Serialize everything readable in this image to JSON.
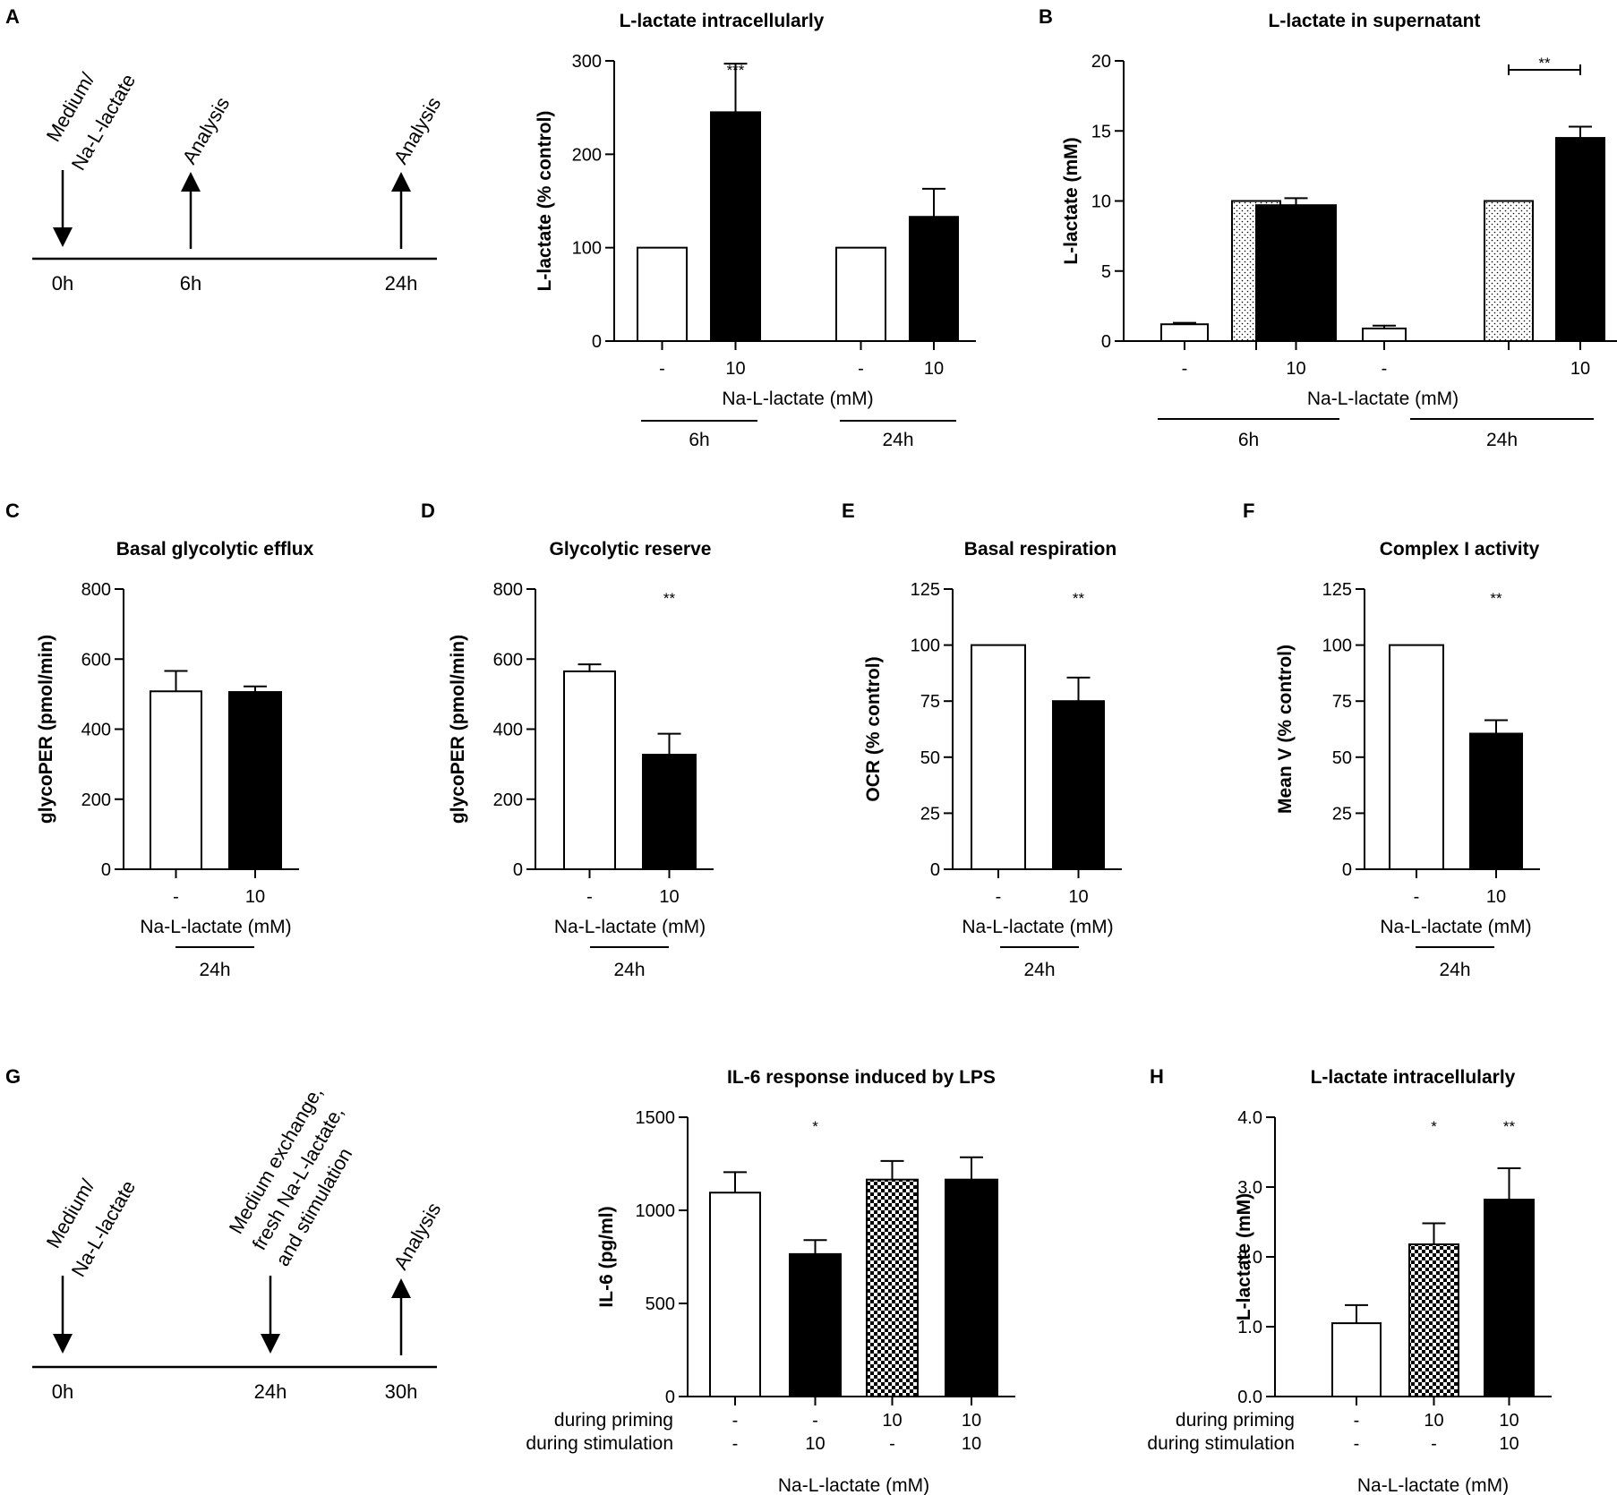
{
  "panels": {
    "A": {
      "label": "A"
    },
    "B": {
      "label": "B"
    },
    "C": {
      "label": "C"
    },
    "D": {
      "label": "D"
    },
    "E": {
      "label": "E"
    },
    "F": {
      "label": "F"
    },
    "G": {
      "label": "G"
    },
    "H": {
      "label": "H"
    }
  },
  "timeline_a": {
    "start_label_1": "Medium/",
    "start_label_2": "Na-L-lactate",
    "analysis_1": "Analysis",
    "analysis_2": "Analysis",
    "times": [
      "0h",
      "6h",
      "24h"
    ]
  },
  "timeline_g": {
    "start_label_1": "Medium/",
    "start_label_2": "Na-L-lactate",
    "mid_label_1": "Medium exchange,",
    "mid_label_2": "fresh Na-L-lactate,",
    "mid_label_3": "and stimulation",
    "analysis": "Analysis",
    "times": [
      "0h",
      "24h",
      "30h"
    ]
  },
  "chart_data": [
    {
      "panel": "A",
      "type": "bar",
      "title": "L-lactate intracellularly",
      "ylabel": "L-lactate (% control)",
      "xlabel": "Na-L-lactate (mM)",
      "ylim": [
        0,
        300
      ],
      "yticks": [
        0,
        100,
        200,
        300
      ],
      "categories": [
        "-",
        "10",
        "-",
        "10"
      ],
      "values": [
        100,
        245,
        100,
        133
      ],
      "errors": [
        0,
        52,
        0,
        30
      ],
      "fills": [
        "white",
        "black",
        "white",
        "black"
      ],
      "groups": [
        {
          "label": "6h",
          "bars": [
            0,
            1
          ]
        },
        {
          "label": "24h",
          "bars": [
            2,
            3
          ]
        }
      ],
      "significance": [
        {
          "bar": 1,
          "text": "***"
        }
      ]
    },
    {
      "panel": "B",
      "type": "bar",
      "title": "L-lactate in supernatant",
      "ylabel": "L-lactate (mM)",
      "xlabel": "Na-L-lactate (mM)",
      "ylim": [
        0,
        20
      ],
      "yticks": [
        0,
        5,
        10,
        15,
        20
      ],
      "categories": [
        "-",
        "",
        "10",
        "-",
        "",
        "10"
      ],
      "values": [
        1.2,
        10,
        9.7,
        0.9,
        10,
        14.5
      ],
      "errors": [
        0.1,
        0,
        0.5,
        0.2,
        0,
        0.8
      ],
      "fills": [
        "white",
        "dots",
        "black",
        "white",
        "dots",
        "black"
      ],
      "groups": [
        {
          "label": "6h",
          "bars": [
            0,
            1,
            2
          ]
        },
        {
          "label": "24h",
          "bars": [
            3,
            4,
            5
          ]
        }
      ],
      "significance": [
        {
          "bracket": [
            4,
            5
          ],
          "text": "**"
        }
      ]
    },
    {
      "panel": "C",
      "type": "bar",
      "title": "Basal glycolytic efflux",
      "ylabel": "glycoPER (pmol/min)",
      "xlabel": "Na-L-lactate (mM)",
      "ylim": [
        0,
        800
      ],
      "yticks": [
        0,
        200,
        400,
        600,
        800
      ],
      "categories": [
        "-",
        "10"
      ],
      "values": [
        508,
        506
      ],
      "errors": [
        58,
        16
      ],
      "fills": [
        "white",
        "black"
      ],
      "groups": [
        {
          "label": "24h",
          "bars": [
            0,
            1
          ]
        }
      ],
      "significance": []
    },
    {
      "panel": "D",
      "type": "bar",
      "title": "Glycolytic reserve",
      "ylabel": "glycoPER (pmol/min)",
      "xlabel": "Na-L-lactate (mM)",
      "ylim": [
        0,
        800
      ],
      "yticks": [
        0,
        200,
        400,
        600,
        800
      ],
      "categories": [
        "-",
        "10"
      ],
      "values": [
        565,
        327
      ],
      "errors": [
        20,
        60
      ],
      "fills": [
        "white",
        "black"
      ],
      "groups": [
        {
          "label": "24h",
          "bars": [
            0,
            1
          ]
        }
      ],
      "significance": [
        {
          "bar": 1,
          "text": "**"
        }
      ]
    },
    {
      "panel": "E",
      "type": "bar",
      "title": "Basal respiration",
      "ylabel": "OCR (% control)",
      "xlabel": "Na-L-lactate (mM)",
      "ylim": [
        0,
        125
      ],
      "yticks": [
        0,
        25,
        50,
        75,
        100,
        125
      ],
      "categories": [
        "-",
        "10"
      ],
      "values": [
        100,
        75
      ],
      "errors": [
        0,
        10.5
      ],
      "fills": [
        "white",
        "black"
      ],
      "groups": [
        {
          "label": "24h",
          "bars": [
            0,
            1
          ]
        }
      ],
      "significance": [
        {
          "bar": 1,
          "text": "**"
        }
      ]
    },
    {
      "panel": "F",
      "type": "bar",
      "title": "Complex I activity",
      "ylabel": "Mean V (% control)",
      "xlabel": "Na-L-lactate (mM)",
      "ylim": [
        0,
        125
      ],
      "yticks": [
        0,
        25,
        50,
        75,
        100,
        125
      ],
      "categories": [
        "-",
        "10"
      ],
      "values": [
        100,
        60.5
      ],
      "errors": [
        0,
        6
      ],
      "fills": [
        "white",
        "black"
      ],
      "groups": [
        {
          "label": "24h",
          "bars": [
            0,
            1
          ]
        }
      ],
      "significance": [
        {
          "bar": 1,
          "text": "**"
        }
      ]
    },
    {
      "panel": "G",
      "type": "bar",
      "title": "IL-6 response induced by LPS",
      "ylabel": "IL-6 (pg/ml)",
      "xlabel": "Na-L-lactate (mM)",
      "ylim": [
        0,
        1500
      ],
      "yticks": [
        0,
        500,
        1000,
        1500
      ],
      "row_labels": [
        "during priming",
        "during stimulation"
      ],
      "rows": [
        [
          "-",
          "-",
          "10",
          "10"
        ],
        [
          "-",
          "10",
          "-",
          "10"
        ]
      ],
      "values": [
        1095,
        765,
        1165,
        1165
      ],
      "errors": [
        110,
        75,
        100,
        120
      ],
      "fills": [
        "white",
        "black",
        "checker",
        "black"
      ],
      "significance": [
        {
          "bar": 1,
          "text": "*"
        }
      ]
    },
    {
      "panel": "H",
      "type": "bar",
      "title": "L-lactate intracellularly",
      "ylabel": "L-lactate (mM)",
      "xlabel": "Na-L-lactate (mM)",
      "ylim": [
        0,
        4.0
      ],
      "yticks": [
        "0.0",
        "1.0",
        "2.0",
        "3.0",
        "4.0"
      ],
      "row_labels": [
        "during priming",
        "during stimulation"
      ],
      "rows": [
        [
          "-",
          "10",
          "10"
        ],
        [
          "-",
          "-",
          "10"
        ]
      ],
      "values": [
        1.05,
        2.18,
        2.82
      ],
      "errors": [
        0.26,
        0.3,
        0.45
      ],
      "fills": [
        "white",
        "checker",
        "black"
      ],
      "significance": [
        {
          "bar": 1,
          "text": "*"
        },
        {
          "bar": 2,
          "text": "**"
        }
      ]
    }
  ]
}
